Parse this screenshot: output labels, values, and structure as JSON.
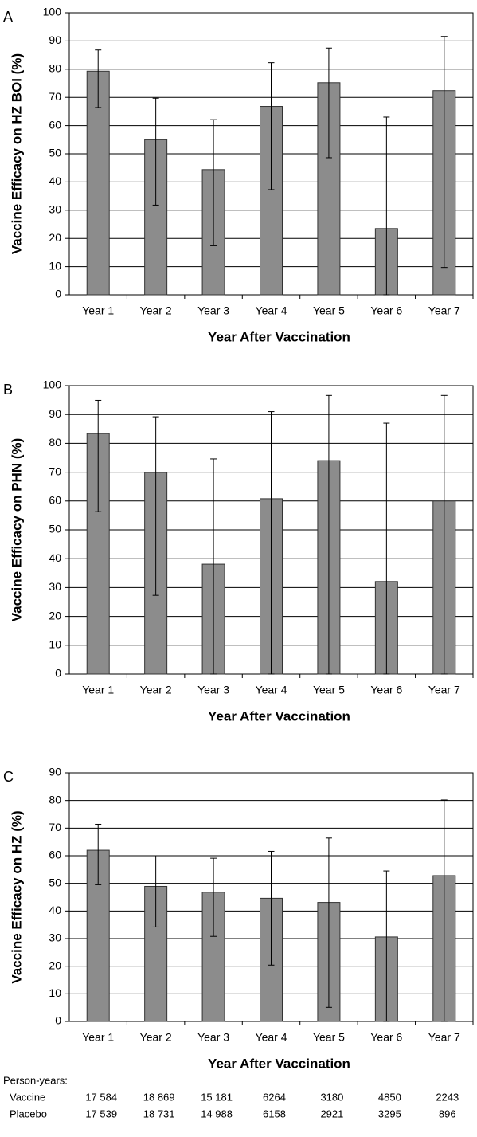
{
  "chart_data": [
    {
      "type": "bar",
      "label": "A",
      "ylabel": "Vaccine Efficacy on HZ BOI (%)",
      "xlabel": "Year After Vaccination",
      "categories": [
        "Year 1",
        "Year 2",
        "Year 3",
        "Year 4",
        "Year 5",
        "Year 6",
        "Year 7"
      ],
      "values": [
        79.3,
        55,
        44.4,
        66.8,
        75.2,
        23.5,
        72.4
      ],
      "ci_lower": [
        66.4,
        31.8,
        17.4,
        37.3,
        48.6,
        0,
        9.7
      ],
      "ci_upper": [
        86.8,
        69.7,
        62.1,
        82.3,
        87.5,
        63,
        91.6
      ],
      "color": "#8c8c8c",
      "ylim": [
        0,
        100
      ],
      "yticks": [
        0,
        10,
        20,
        30,
        40,
        50,
        60,
        70,
        80,
        90,
        100
      ],
      "grid": true
    },
    {
      "type": "bar",
      "label": "B",
      "ylabel": "Vaccine Efficacy on PHN (%)",
      "xlabel": "Year After Vaccination",
      "categories": [
        "Year 1",
        "Year 2",
        "Year 3",
        "Year 4",
        "Year 5",
        "Year 6",
        "Year 7"
      ],
      "values": [
        83.4,
        69.9,
        38.1,
        60.8,
        74.0,
        32.1,
        60.0
      ],
      "ci_lower": [
        56.3,
        27.3,
        0,
        0,
        0,
        0,
        0
      ],
      "ci_upper": [
        94.9,
        89.2,
        74.6,
        91.0,
        96.6,
        87.0,
        96.6
      ],
      "color": "#8c8c8c",
      "ylim": [
        0,
        100
      ],
      "yticks": [
        0,
        10,
        20,
        30,
        40,
        50,
        60,
        70,
        80,
        90,
        100
      ],
      "grid": true
    },
    {
      "type": "bar",
      "label": "C",
      "ylabel": "Vaccine Efficacy on HZ (%)",
      "xlabel": "Year After Vaccination",
      "categories": [
        "Year 1",
        "Year 2",
        "Year 3",
        "Year 4",
        "Year 5",
        "Year 6",
        "Year 7"
      ],
      "values": [
        62,
        48.9,
        46.8,
        44.6,
        43.1,
        30.6,
        52.8
      ],
      "ci_lower": [
        49.5,
        34.2,
        30.8,
        20.4,
        5.1,
        0,
        0
      ],
      "ci_upper": [
        71.4,
        60,
        59.1,
        61.6,
        66.4,
        54.5,
        80.2
      ],
      "color": "#8c8c8c",
      "ylim": [
        0,
        90
      ],
      "yticks": [
        0,
        10,
        20,
        30,
        40,
        50,
        60,
        70,
        80,
        90
      ],
      "grid": true
    }
  ],
  "person_years": {
    "title": "Person-years:",
    "rows": [
      {
        "name": "Vaccine",
        "values": [
          "17 584",
          "18 869",
          "15 181",
          "6264",
          "3180",
          "4850",
          "2243"
        ]
      },
      {
        "name": "Placebo",
        "values": [
          "17 539",
          "18 731",
          "14 988",
          "6158",
          "2921",
          "3295",
          "896"
        ]
      }
    ]
  }
}
